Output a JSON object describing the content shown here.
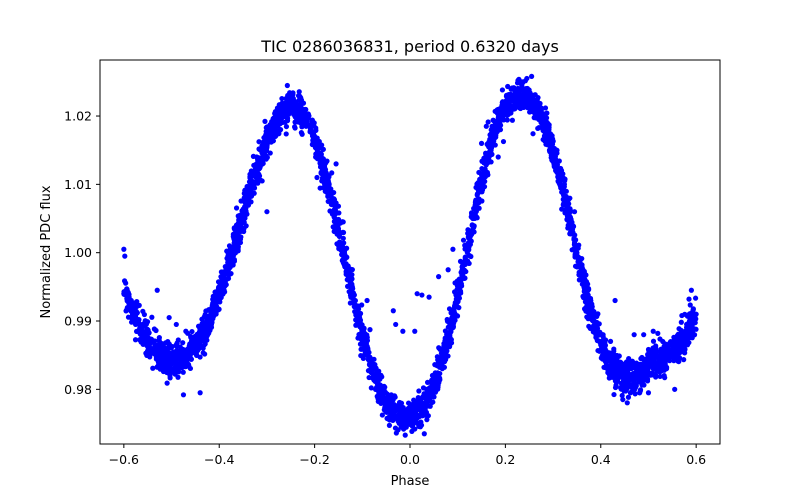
{
  "chart_data": {
    "type": "scatter",
    "title": "TIC 0286036831, period 0.6320 days",
    "xlabel": "Phase",
    "ylabel": "Normalized PDC flux",
    "xlim": [
      -0.65,
      0.65
    ],
    "ylim": [
      0.972,
      1.0282
    ],
    "x_ticks": [
      -0.6,
      -0.4,
      -0.2,
      0.0,
      0.2,
      0.4,
      0.6
    ],
    "x_tick_labels": [
      "−0.6",
      "−0.4",
      "−0.2",
      "0.0",
      "0.2",
      "0.4",
      "0.6"
    ],
    "y_ticks": [
      0.98,
      0.99,
      1.0,
      1.01,
      1.02
    ],
    "y_tick_labels": [
      "0.98",
      "0.99",
      "1.00",
      "1.01",
      "1.02"
    ],
    "grid": false,
    "legend": "none",
    "marker_color": "#0000ff",
    "series": [
      {
        "x": [
          -0.6,
          -0.575,
          -0.55,
          -0.525,
          -0.5,
          -0.475,
          -0.45,
          -0.425,
          -0.4,
          -0.375,
          -0.35,
          -0.325,
          -0.3,
          -0.275,
          -0.25,
          -0.225,
          -0.2,
          -0.175,
          -0.15,
          -0.125,
          -0.1,
          -0.075,
          -0.05,
          -0.025,
          0.0,
          0.025,
          0.05,
          0.075,
          0.1,
          0.125,
          0.15,
          0.175,
          0.2,
          0.225,
          0.25,
          0.275,
          0.3,
          0.325,
          0.35,
          0.375,
          0.4,
          0.425,
          0.45,
          0.475,
          0.5,
          0.525,
          0.55,
          0.575,
          0.6
        ],
        "y": [
          0.994,
          0.9905,
          0.9872,
          0.985,
          0.984,
          0.9845,
          0.9862,
          0.9895,
          0.994,
          0.9995,
          1.0055,
          1.0115,
          1.0165,
          1.02,
          1.0215,
          1.0205,
          1.017,
          1.011,
          1.0035,
          0.9955,
          0.988,
          0.982,
          0.978,
          0.9762,
          0.976,
          0.977,
          0.9805,
          0.986,
          0.9935,
          1.002,
          1.0105,
          1.0175,
          1.0215,
          1.023,
          1.0225,
          1.02,
          1.015,
          1.008,
          1.0,
          0.9925,
          0.9865,
          0.983,
          0.9818,
          0.9822,
          0.9835,
          0.9845,
          0.9855,
          0.9875,
          0.991
        ],
        "spread": [
          0.0016,
          0.0016,
          0.0016,
          0.0016,
          0.0016,
          0.0016,
          0.0016,
          0.0016,
          0.0017,
          0.0018,
          0.0018,
          0.0018,
          0.0017,
          0.0016,
          0.0014,
          0.0014,
          0.0016,
          0.0017,
          0.0018,
          0.0018,
          0.0017,
          0.0016,
          0.0015,
          0.0014,
          0.0014,
          0.0014,
          0.0015,
          0.0016,
          0.0017,
          0.0018,
          0.0018,
          0.0017,
          0.0015,
          0.0014,
          0.0014,
          0.0015,
          0.0017,
          0.0018,
          0.0018,
          0.0018,
          0.0017,
          0.0016,
          0.0016,
          0.0016,
          0.0016,
          0.0016,
          0.0016,
          0.0016,
          0.0016
        ]
      }
    ],
    "outliers": [
      {
        "x": -0.6,
        "y": 1.0005
      },
      {
        "x": -0.598,
        "y": 0.9995
      },
      {
        "x": -0.53,
        "y": 0.9945
      },
      {
        "x": -0.505,
        "y": 0.9905
      },
      {
        "x": -0.49,
        "y": 0.9895
      },
      {
        "x": -0.47,
        "y": 0.9885
      },
      {
        "x": -0.44,
        "y": 0.9795
      },
      {
        "x": -0.475,
        "y": 0.9792
      },
      {
        "x": -0.365,
        "y": 1.003
      },
      {
        "x": -0.31,
        "y": 1.0105
      },
      {
        "x": -0.3,
        "y": 1.006
      },
      {
        "x": -0.195,
        "y": 1.011
      },
      {
        "x": -0.185,
        "y": 1.0105
      },
      {
        "x": -0.175,
        "y": 1.0098
      },
      {
        "x": -0.16,
        "y": 1.0088
      },
      {
        "x": -0.15,
        "y": 1.0068
      },
      {
        "x": -0.14,
        "y": 1.0045
      },
      {
        "x": -0.155,
        "y": 1.013
      },
      {
        "x": -0.09,
        "y": 0.993
      },
      {
        "x": -0.035,
        "y": 0.9915
      },
      {
        "x": -0.03,
        "y": 0.9895
      },
      {
        "x": -0.015,
        "y": 0.9885
      },
      {
        "x": 0.01,
        "y": 0.9885
      },
      {
        "x": 0.015,
        "y": 0.994
      },
      {
        "x": 0.025,
        "y": 0.9938
      },
      {
        "x": 0.04,
        "y": 0.9935
      },
      {
        "x": 0.06,
        "y": 0.9965
      },
      {
        "x": 0.08,
        "y": 0.9975
      },
      {
        "x": 0.09,
        "y": 1.0005
      },
      {
        "x": 0.145,
        "y": 1.0065
      },
      {
        "x": 0.15,
        "y": 1.016
      },
      {
        "x": 0.16,
        "y": 1.0185
      },
      {
        "x": 0.17,
        "y": 1.015
      },
      {
        "x": 0.185,
        "y": 1.014
      },
      {
        "x": 0.235,
        "y": 1.025
      },
      {
        "x": 0.245,
        "y": 1.0255
      },
      {
        "x": 0.255,
        "y": 1.0258
      },
      {
        "x": 0.345,
        "y": 1.006
      },
      {
        "x": 0.43,
        "y": 0.993
      },
      {
        "x": 0.47,
        "y": 0.988
      },
      {
        "x": 0.49,
        "y": 0.988
      },
      {
        "x": 0.51,
        "y": 0.9885
      },
      {
        "x": 0.53,
        "y": 0.987
      },
      {
        "x": 0.545,
        "y": 0.9868
      },
      {
        "x": 0.57,
        "y": 0.9908
      },
      {
        "x": 0.585,
        "y": 0.9932
      },
      {
        "x": 0.59,
        "y": 0.9945
      },
      {
        "x": 0.5,
        "y": 0.9795
      },
      {
        "x": 0.555,
        "y": 0.98
      },
      {
        "x": 0.03,
        "y": 0.9735
      },
      {
        "x": -0.01,
        "y": 0.9733
      }
    ]
  }
}
